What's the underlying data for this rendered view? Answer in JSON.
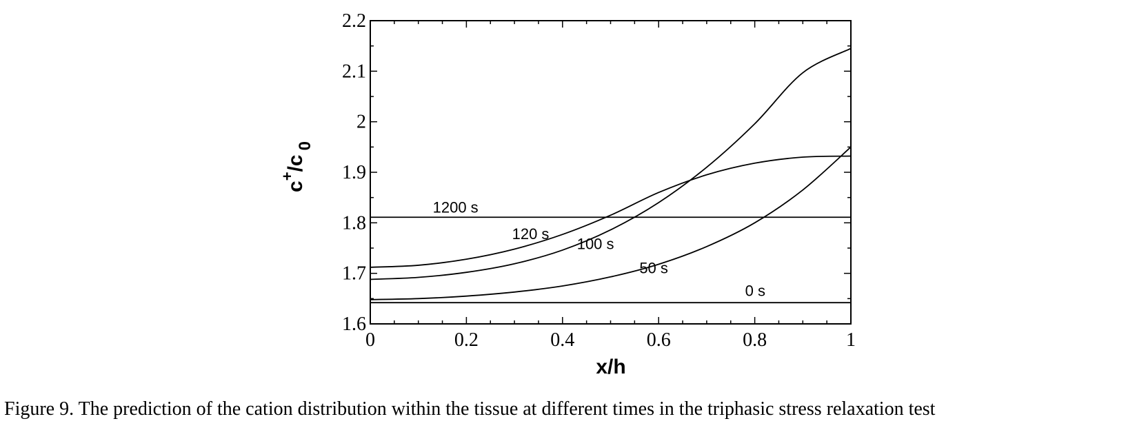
{
  "caption": "Figure 9.  The prediction of the cation distribution within the tissue at different times in the triphasic stress relaxation test",
  "chart_data": {
    "type": "line",
    "title": "",
    "xlabel": "x/h",
    "ylabel": {
      "base": "c",
      "sup": "+",
      "sep": "/c",
      "sub": "0"
    },
    "xlim": [
      0,
      1
    ],
    "ylim": [
      1.6,
      2.2
    ],
    "xticks": [
      0,
      0.2,
      0.4,
      0.6,
      0.8,
      1
    ],
    "xtick_labels": [
      "0",
      "0.2",
      "0.4",
      "0.6",
      "0.8",
      "1"
    ],
    "yticks": [
      1.6,
      1.7,
      1.8,
      1.9,
      2.0,
      2.1,
      2.2
    ],
    "ytick_labels": [
      "1.6",
      "1.7",
      "1.8",
      "1.9",
      "2",
      "2.1",
      "2.2"
    ],
    "grid": false,
    "legend": "none",
    "series": [
      {
        "name": "0 s",
        "x": [
          0,
          0.2,
          0.4,
          0.6,
          0.8,
          1.0
        ],
        "y": [
          1.642,
          1.642,
          1.642,
          1.642,
          1.642,
          1.642
        ],
        "label_at": [
          0.78,
          1.655
        ]
      },
      {
        "name": "50 s",
        "x": [
          0,
          0.1,
          0.2,
          0.3,
          0.4,
          0.5,
          0.6,
          0.7,
          0.8,
          0.9,
          1.0
        ],
        "y": [
          1.648,
          1.65,
          1.655,
          1.663,
          1.675,
          1.693,
          1.718,
          1.753,
          1.8,
          1.865,
          1.95
        ],
        "label_at": [
          0.56,
          1.7
        ]
      },
      {
        "name": "100 s",
        "x": [
          0,
          0.1,
          0.2,
          0.3,
          0.4,
          0.5,
          0.6,
          0.7,
          0.8,
          0.9,
          1.0
        ],
        "y": [
          1.688,
          1.692,
          1.702,
          1.719,
          1.746,
          1.786,
          1.84,
          1.91,
          1.996,
          2.097,
          2.145
        ],
        "label_at": [
          0.43,
          1.748
        ]
      },
      {
        "name": "120 s",
        "x": [
          0,
          0.1,
          0.2,
          0.3,
          0.4,
          0.5,
          0.6,
          0.7,
          0.8,
          0.9,
          1.0
        ],
        "y": [
          1.712,
          1.716,
          1.728,
          1.748,
          1.777,
          1.815,
          1.86,
          1.895,
          1.918,
          1.93,
          1.932
        ],
        "label_at": [
          0.295,
          1.768
        ]
      },
      {
        "name": "1200 s",
        "x": [
          0,
          0.2,
          0.4,
          0.6,
          0.8,
          1.0
        ],
        "y": [
          1.811,
          1.811,
          1.811,
          1.811,
          1.811,
          1.811
        ],
        "label_at": [
          0.13,
          1.82
        ]
      }
    ]
  }
}
